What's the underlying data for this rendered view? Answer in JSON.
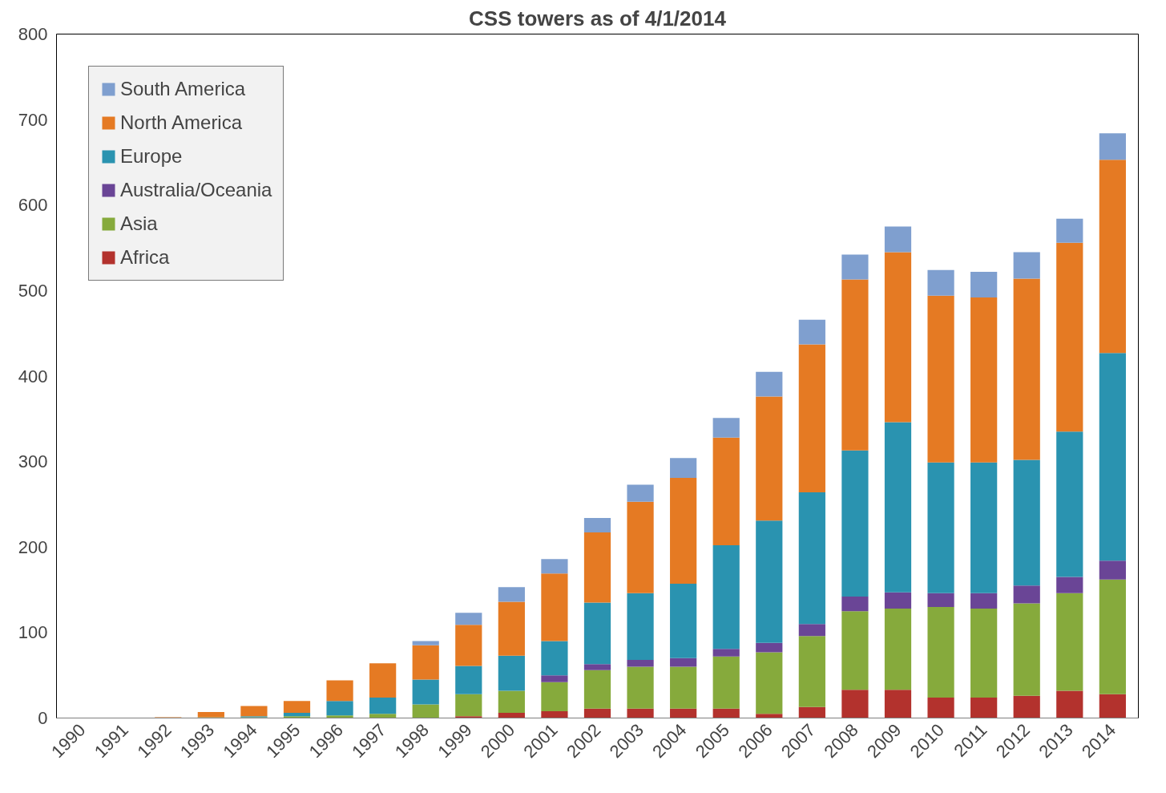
{
  "chart_data": {
    "type": "bar",
    "title": "CSS towers as of 4/1/2014",
    "stacked": true,
    "legend": "top left",
    "grid": false,
    "categories": [
      "1990",
      "1991",
      "1992",
      "1993",
      "1994",
      "1995",
      "1996",
      "1997",
      "1998",
      "1999",
      "2000",
      "2001",
      "2002",
      "2003",
      "2004",
      "2005",
      "2006",
      "2007",
      "2008",
      "2009",
      "2010",
      "2011",
      "2012",
      "2013",
      "2014"
    ],
    "ylim": [
      0,
      800
    ],
    "yticks": [
      0,
      100,
      200,
      300,
      400,
      500,
      600,
      700,
      800
    ],
    "series": [
      {
        "name": "Africa",
        "color": "#b3322d",
        "values": [
          0,
          0,
          0,
          0,
          0,
          0,
          0,
          0,
          0,
          2,
          6,
          8,
          11,
          11,
          11,
          11,
          5,
          13,
          33,
          33,
          24,
          24,
          26,
          32,
          28
        ]
      },
      {
        "name": "Asia",
        "color": "#86aa3c",
        "values": [
          0,
          0,
          0,
          1,
          1,
          2,
          3,
          5,
          16,
          26,
          26,
          34,
          45,
          49,
          49,
          61,
          72,
          83,
          92,
          95,
          106,
          104,
          108,
          114,
          134
        ]
      },
      {
        "name": "Australia/Oceania",
        "color": "#6a4596",
        "values": [
          0,
          0,
          0,
          0,
          0,
          0,
          0,
          0,
          0,
          0,
          0,
          8,
          7,
          8,
          10,
          9,
          11,
          14,
          17,
          19,
          16,
          18,
          21,
          19,
          22
        ]
      },
      {
        "name": "Europe",
        "color": "#2a93b0",
        "values": [
          0,
          0,
          0,
          0,
          1,
          4,
          17,
          19,
          29,
          33,
          41,
          40,
          72,
          78,
          87,
          121,
          143,
          154,
          171,
          199,
          153,
          153,
          147,
          170,
          243
        ]
      },
      {
        "name": "North America",
        "color": "#e57a23",
        "values": [
          0,
          0,
          1,
          6,
          12,
          14,
          24,
          40,
          40,
          48,
          63,
          79,
          82,
          107,
          124,
          126,
          145,
          173,
          200,
          199,
          195,
          193,
          212,
          221,
          226
        ]
      },
      {
        "name": "South America",
        "color": "#7f9fcf",
        "values": [
          0,
          0,
          0,
          0,
          0,
          0,
          0,
          0,
          5,
          14,
          17,
          17,
          17,
          20,
          23,
          23,
          29,
          29,
          29,
          30,
          30,
          30,
          31,
          28,
          31
        ]
      }
    ]
  }
}
